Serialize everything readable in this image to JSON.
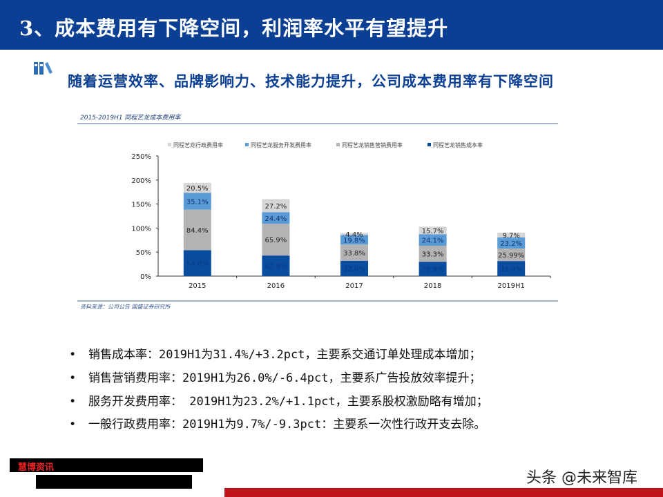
{
  "header": {
    "title": "3、成本费用有下降空间，利润率水平有望提升"
  },
  "subtitle": "随着运营效率、品牌影响力、技术能力提升，公司成本费用率有下降空间",
  "chart_data": {
    "type": "bar",
    "stacked": true,
    "title": "2015-2019H1 同程艺龙成本费用率",
    "source": "资料来源：公司公告 国盛证券研究所",
    "categories": [
      "2015",
      "2016",
      "2017",
      "2018",
      "2019H1"
    ],
    "ylim": [
      0,
      250
    ],
    "yticks": [
      "0%",
      "50%",
      "100%",
      "150%",
      "200%",
      "250%"
    ],
    "legend_position": "top",
    "legend_order": [
      "同程艺龙行政费用率",
      "同程艺龙服务开发费用率",
      "同程艺龙销售营销费用率",
      "同程艺龙销售成本率"
    ],
    "series": [
      {
        "name": "同程艺龙销售成本率",
        "color": "#0a4ca0",
        "values": [
          54.0,
          42.9,
          32.0,
          29.9,
          31.4
        ],
        "labels": [
          "54.0%",
          "42.9%",
          "32.0%",
          "29.9%",
          "31.4%"
        ]
      },
      {
        "name": "同程艺龙销售营销费用率",
        "color": "#b3b3b3",
        "values": [
          84.4,
          65.9,
          33.8,
          33.3,
          25.99
        ],
        "labels": [
          "84.4%",
          "65.9%",
          "33.8%",
          "33.3%",
          "25.99%"
        ]
      },
      {
        "name": "同程艺龙服务开发费用率",
        "color": "#5b9bd5",
        "values": [
          35.1,
          24.4,
          19.8,
          24.1,
          23.2
        ],
        "labels": [
          "35.1%",
          "24.4%",
          "19.8%",
          "24.1%",
          "23.2%"
        ]
      },
      {
        "name": "同程艺龙行政费用率",
        "color": "#d6d6d6",
        "values": [
          20.5,
          27.2,
          4.4,
          15.7,
          9.7
        ],
        "labels": [
          "20.5%",
          "27.2%",
          "4.4%",
          "15.7%",
          "9.7%"
        ]
      }
    ]
  },
  "bullets": [
    "销售成本率：2019H1为31.4%/+3.2pct，主要系交通订单处理成本增加；",
    "销售营销费用率：2019H1为26.0%/-6.4pct，主要系广告投放效率提升；",
    "服务开发费用率： 2019H1为23.2%/+1.1pct，主要系股权激励略有增加；",
    "一般行政费用率：2019H1为9.7%/-9.3pct：主要系一次性行政开支去除。"
  ],
  "footer": {
    "redacted_label": "慧博资讯",
    "watermark": "头条 @未来智库"
  },
  "colors": {
    "header": "#0b3f94",
    "accent_red": "#c0141c"
  }
}
